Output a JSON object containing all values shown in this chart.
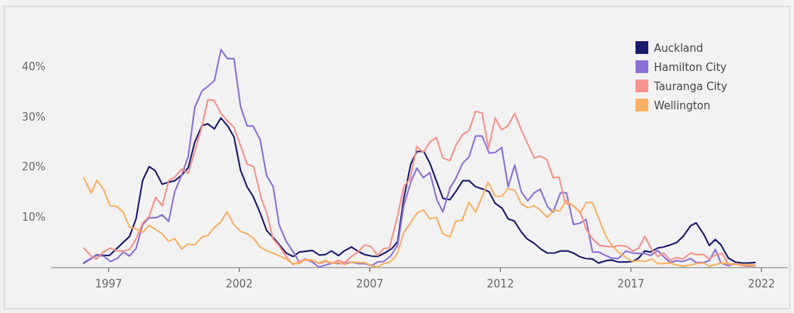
{
  "chart_data": {
    "type": "line",
    "xlim": [
      1994.8,
      2023
    ],
    "xticks": [
      1997,
      2002,
      2007,
      2012,
      2017,
      2022
    ],
    "ylim": [
      0,
      52
    ],
    "yticks": [
      {
        "value": 10,
        "label": "10%"
      },
      {
        "value": 20,
        "label": "20%"
      },
      {
        "value": 30,
        "label": "30%"
      },
      {
        "value": 40,
        "label": "40%"
      }
    ],
    "grid": false,
    "legend": "top right",
    "marker": "none",
    "line_style": "solid",
    "series": [
      {
        "name": "Auckland",
        "color": "#1a1a6e",
        "x": [
          1996.05,
          1996.53,
          1997.03,
          1997.8,
          1998.05,
          1998.3,
          1998.55,
          1998.78,
          1999.05,
          1999.3,
          1999.53,
          1999.8,
          2000.05,
          2000.3,
          2000.58,
          2000.8,
          2001.05,
          2001.3,
          2001.57,
          2001.8,
          2002.05,
          2002.3,
          2002.53,
          2002.8,
          2003.05,
          2003.35,
          2003.8,
          2004.07,
          2004.3,
          2004.8,
          2005.07,
          2005.3,
          2005.53,
          2005.8,
          2006.02,
          2006.3,
          2006.53,
          2006.8,
          2007.07,
          2007.3,
          2007.57,
          2007.85,
          2008.07,
          2008.3,
          2008.57,
          2008.8,
          2009.07,
          2009.3,
          2009.57,
          2009.8,
          2010.07,
          2010.29,
          2010.56,
          2010.8,
          2011.05,
          2011.35,
          2011.57,
          2011.8,
          2012.07,
          2012.3,
          2012.53,
          2012.8,
          2013.03,
          2013.3,
          2013.57,
          2013.8,
          2014.07,
          2014.3,
          2014.58,
          2014.8,
          2015.03,
          2015.26,
          2015.53,
          2015.76,
          2016.07,
          2016.25,
          2016.53,
          2016.8,
          2017.07,
          2017.3,
          2017.53,
          2017.75,
          2018.03,
          2018.25,
          2018.5,
          2018.75,
          2019.0,
          2019.28,
          2019.5,
          2019.78,
          2020.0,
          2020.23,
          2020.45,
          2020.73,
          2021.0,
          2021.28,
          2021.5,
          2021.75
        ],
        "values": [
          0.9,
          2.5,
          2.4,
          6.2,
          9.7,
          17.3,
          20.1,
          19.3,
          16.6,
          17.0,
          17.3,
          18.4,
          19.9,
          25.0,
          28.3,
          28.6,
          27.6,
          29.8,
          28.1,
          26.0,
          19.4,
          16.1,
          14.2,
          10.9,
          7.4,
          5.7,
          2.9,
          2.2,
          3.1,
          3.4,
          2.5,
          2.6,
          3.3,
          2.4,
          3.3,
          4.1,
          3.3,
          2.6,
          2.3,
          2.2,
          2.9,
          3.8,
          5.2,
          13.7,
          20.6,
          23.1,
          23.1,
          20.8,
          17.0,
          13.8,
          13.5,
          15.1,
          17.3,
          17.3,
          16.1,
          15.6,
          15.1,
          12.8,
          11.8,
          9.7,
          9.3,
          7.1,
          5.7,
          4.8,
          3.6,
          2.9,
          2.9,
          3.3,
          3.3,
          2.9,
          2.2,
          1.8,
          1.7,
          0.9,
          1.4,
          1.5,
          1.1,
          1.1,
          1.2,
          1.9,
          3.3,
          3.1,
          3.9,
          4.1,
          4.5,
          5.0,
          6.2,
          8.3,
          8.9,
          6.7,
          4.4,
          5.6,
          4.5,
          1.9,
          1.1,
          0.9,
          0.9,
          1.0
        ]
      },
      {
        "name": "Hamilton City",
        "color": "#8a70d6",
        "x": [
          1996.05,
          1996.53,
          1996.8,
          1997.07,
          1997.35,
          1997.57,
          1997.8,
          1998.05,
          1998.3,
          1998.55,
          1998.8,
          1999.05,
          1999.3,
          1999.53,
          1999.8,
          2000.05,
          2000.3,
          2000.58,
          2000.8,
          2001.05,
          2001.3,
          2001.55,
          2001.8,
          2002.05,
          2002.3,
          2002.53,
          2002.8,
          2003.05,
          2003.3,
          2003.53,
          2003.8,
          2004.07,
          2004.3,
          2004.53,
          2004.8,
          2005.05,
          2005.3,
          2005.57,
          2005.8,
          2006.07,
          2006.3,
          2006.57,
          2006.8,
          2007.07,
          2007.3,
          2007.53,
          2007.8,
          2008.07,
          2008.3,
          2008.57,
          2008.8,
          2009.05,
          2009.3,
          2009.57,
          2009.8,
          2010.07,
          2010.29,
          2010.56,
          2010.8,
          2011.05,
          2011.3,
          2011.57,
          2011.8,
          2012.05,
          2012.3,
          2012.55,
          2012.8,
          2013.05,
          2013.3,
          2013.53,
          2013.8,
          2014.02,
          2014.3,
          2014.53,
          2014.8,
          2015.03,
          2015.28,
          2015.53,
          2015.76,
          2016.03,
          2016.25,
          2016.53,
          2016.8,
          2017.07,
          2017.3,
          2017.53,
          2017.75,
          2018.03,
          2018.25,
          2018.5,
          2018.75,
          2019.0,
          2019.28,
          2019.5,
          2019.78,
          2020.0,
          2020.23,
          2020.45,
          2020.73,
          2021.0,
          2021.28,
          2021.5,
          2021.75
        ],
        "values": [
          1.0,
          2.4,
          2.3,
          1.2,
          1.9,
          3.1,
          2.3,
          3.8,
          8.5,
          9.9,
          9.9,
          10.5,
          9.2,
          15.1,
          18.4,
          22.2,
          31.9,
          35.2,
          36.1,
          37.2,
          43.4,
          41.6,
          41.6,
          32.1,
          28.2,
          28.2,
          25.5,
          18.3,
          16.1,
          8.5,
          5.2,
          3.1,
          1.1,
          1.7,
          1.1,
          0.1,
          0.5,
          0.9,
          0.8,
          0.9,
          1.1,
          0.8,
          0.8,
          0.4,
          1.1,
          1.2,
          2.3,
          4.5,
          12.3,
          17.0,
          19.8,
          17.9,
          18.9,
          13.5,
          11.1,
          15.8,
          17.7,
          20.8,
          22.0,
          26.2,
          26.2,
          22.8,
          22.9,
          23.9,
          16.1,
          20.4,
          15.1,
          13.3,
          14.9,
          15.6,
          12.2,
          11.0,
          14.9,
          14.9,
          8.6,
          8.8,
          9.6,
          3.1,
          3.1,
          2.4,
          1.9,
          1.8,
          3.3,
          2.9,
          2.8,
          2.8,
          2.4,
          3.4,
          2.2,
          1.0,
          1.4,
          1.2,
          1.8,
          1.0,
          1.0,
          1.4,
          3.6,
          0.9,
          0.4,
          0.8,
          0.4,
          0.3,
          0.3
        ]
      },
      {
        "name": "Tauranga City",
        "color": "#f7928a",
        "x": [
          1996.05,
          1996.35,
          1996.53,
          1996.8,
          1997.07,
          1997.35,
          1997.57,
          1997.8,
          1998.05,
          1998.3,
          1998.55,
          1998.8,
          1999.05,
          1999.3,
          1999.53,
          1999.8,
          2000.05,
          2000.3,
          2000.55,
          2000.8,
          2001.03,
          2001.3,
          2001.53,
          2001.8,
          2002.05,
          2002.3,
          2002.55,
          2002.85,
          2003.05,
          2003.3,
          2003.53,
          2003.8,
          2004.05,
          2004.3,
          2004.53,
          2004.8,
          2005.05,
          2005.3,
          2005.57,
          2005.8,
          2006.05,
          2006.3,
          2006.55,
          2006.8,
          2007.05,
          2007.3,
          2007.53,
          2007.75,
          2008.07,
          2008.3,
          2008.55,
          2008.8,
          2009.05,
          2009.3,
          2009.55,
          2009.8,
          2010.07,
          2010.29,
          2010.56,
          2010.8,
          2011.05,
          2011.3,
          2011.55,
          2011.8,
          2012.05,
          2012.3,
          2012.55,
          2012.8,
          2013.05,
          2013.3,
          2013.53,
          2013.78,
          2014.02,
          2014.25,
          2014.48,
          2014.8,
          2015.07,
          2015.28,
          2015.53,
          2015.8,
          2016.07,
          2016.3,
          2016.53,
          2016.8,
          2017.07,
          2017.3,
          2017.53,
          2017.8,
          2018.03,
          2018.25,
          2018.5,
          2018.75,
          2019.0,
          2019.28,
          2019.5,
          2019.78,
          2020.0,
          2020.23,
          2020.5,
          2020.73,
          2021.0,
          2021.28,
          2021.5,
          2021.75
        ],
        "values": [
          3.9,
          2.2,
          1.7,
          3.1,
          3.9,
          3.3,
          3.3,
          3.6,
          5.7,
          8.8,
          10.2,
          14.0,
          12.3,
          17.3,
          18.0,
          19.6,
          18.8,
          23.2,
          27.6,
          33.4,
          33.3,
          30.7,
          29.3,
          27.9,
          24.3,
          20.6,
          20.1,
          13.7,
          10.9,
          5.7,
          4.3,
          2.2,
          0.6,
          1.2,
          1.5,
          1.4,
          0.8,
          1.2,
          0.9,
          1.4,
          1.0,
          2.2,
          3.1,
          4.5,
          4.2,
          2.4,
          3.8,
          3.9,
          10.4,
          16.1,
          17.7,
          24.1,
          22.9,
          25.0,
          25.9,
          21.8,
          21.3,
          24.3,
          26.5,
          27.3,
          31.1,
          30.8,
          23.7,
          29.8,
          27.4,
          28.3,
          30.7,
          27.4,
          24.6,
          21.8,
          22.2,
          21.5,
          17.9,
          18.0,
          12.9,
          12.3,
          10.9,
          7.7,
          5.7,
          4.4,
          4.2,
          4.1,
          4.4,
          4.3,
          3.3,
          3.9,
          6.2,
          3.6,
          2.2,
          2.9,
          1.5,
          2.0,
          1.7,
          2.9,
          2.6,
          2.6,
          1.7,
          2.5,
          2.8,
          0.6,
          0.8,
          0.4,
          0.4,
          0.3
        ]
      },
      {
        "name": "Wellington",
        "color": "#fbb062",
        "x": [
          1996.05,
          1996.33,
          1996.55,
          1996.8,
          1997.05,
          1997.3,
          1997.55,
          1997.8,
          1998.05,
          1998.3,
          1998.55,
          1998.8,
          1999.05,
          1999.3,
          1999.53,
          1999.8,
          2000.05,
          2000.3,
          2000.58,
          2000.8,
          2001.05,
          2001.3,
          2001.53,
          2001.8,
          2002.05,
          2002.3,
          2002.55,
          2002.8,
          2003.07,
          2003.3,
          2003.8,
          2004.05,
          2004.3,
          2004.53,
          2004.8,
          2005.05,
          2005.3,
          2005.57,
          2005.8,
          2006.05,
          2006.3,
          2006.55,
          2006.8,
          2007.05,
          2007.3,
          2007.53,
          2007.78,
          2008.03,
          2008.3,
          2008.55,
          2008.8,
          2009.05,
          2009.3,
          2009.55,
          2009.8,
          2010.07,
          2010.29,
          2010.53,
          2010.8,
          2011.05,
          2011.3,
          2011.53,
          2011.8,
          2012.05,
          2012.3,
          2012.55,
          2012.8,
          2013.05,
          2013.3,
          2013.53,
          2013.8,
          2014.02,
          2014.28,
          2014.53,
          2014.8,
          2015.07,
          2015.3,
          2015.53,
          2015.78,
          2016.03,
          2016.27,
          2016.53,
          2016.75,
          2017.07,
          2017.3,
          2017.53,
          2017.8,
          2018.03,
          2018.25,
          2018.5,
          2018.75,
          2019.0,
          2019.28,
          2019.5,
          2019.78,
          2020.0,
          2020.23,
          2020.45,
          2020.73,
          2021.0,
          2021.28,
          2021.5,
          2021.75
        ],
        "values": [
          17.9,
          14.8,
          17.4,
          15.6,
          12.3,
          12.2,
          11.1,
          8.0,
          7.7,
          7.0,
          8.4,
          7.6,
          6.7,
          5.2,
          5.8,
          3.7,
          4.7,
          4.5,
          6.1,
          6.4,
          8.0,
          9.1,
          11.1,
          8.5,
          7.2,
          6.7,
          5.8,
          4.1,
          3.3,
          2.9,
          1.7,
          0.8,
          0.8,
          1.6,
          1.5,
          0.9,
          1.4,
          0.9,
          1.0,
          0.6,
          1.1,
          1.0,
          1.0,
          0.4,
          0.1,
          0.8,
          1.1,
          2.5,
          6.9,
          8.8,
          10.8,
          11.5,
          9.7,
          10.0,
          6.7,
          6.1,
          9.2,
          9.4,
          13.0,
          11.0,
          14.1,
          17.0,
          14.2,
          14.2,
          15.7,
          15.4,
          12.7,
          11.9,
          12.3,
          11.4,
          10.0,
          11.4,
          11.3,
          13.3,
          12.2,
          11.0,
          13.0,
          12.9,
          9.6,
          6.4,
          4.4,
          3.0,
          2.2,
          1.2,
          1.4,
          1.2,
          1.7,
          0.8,
          0.8,
          0.9,
          0.5,
          0.3,
          0.5,
          0.8,
          0.9,
          0.3,
          0.6,
          0.9,
          0.8,
          0.6,
          0.6,
          0.6,
          0.5
        ]
      }
    ]
  }
}
